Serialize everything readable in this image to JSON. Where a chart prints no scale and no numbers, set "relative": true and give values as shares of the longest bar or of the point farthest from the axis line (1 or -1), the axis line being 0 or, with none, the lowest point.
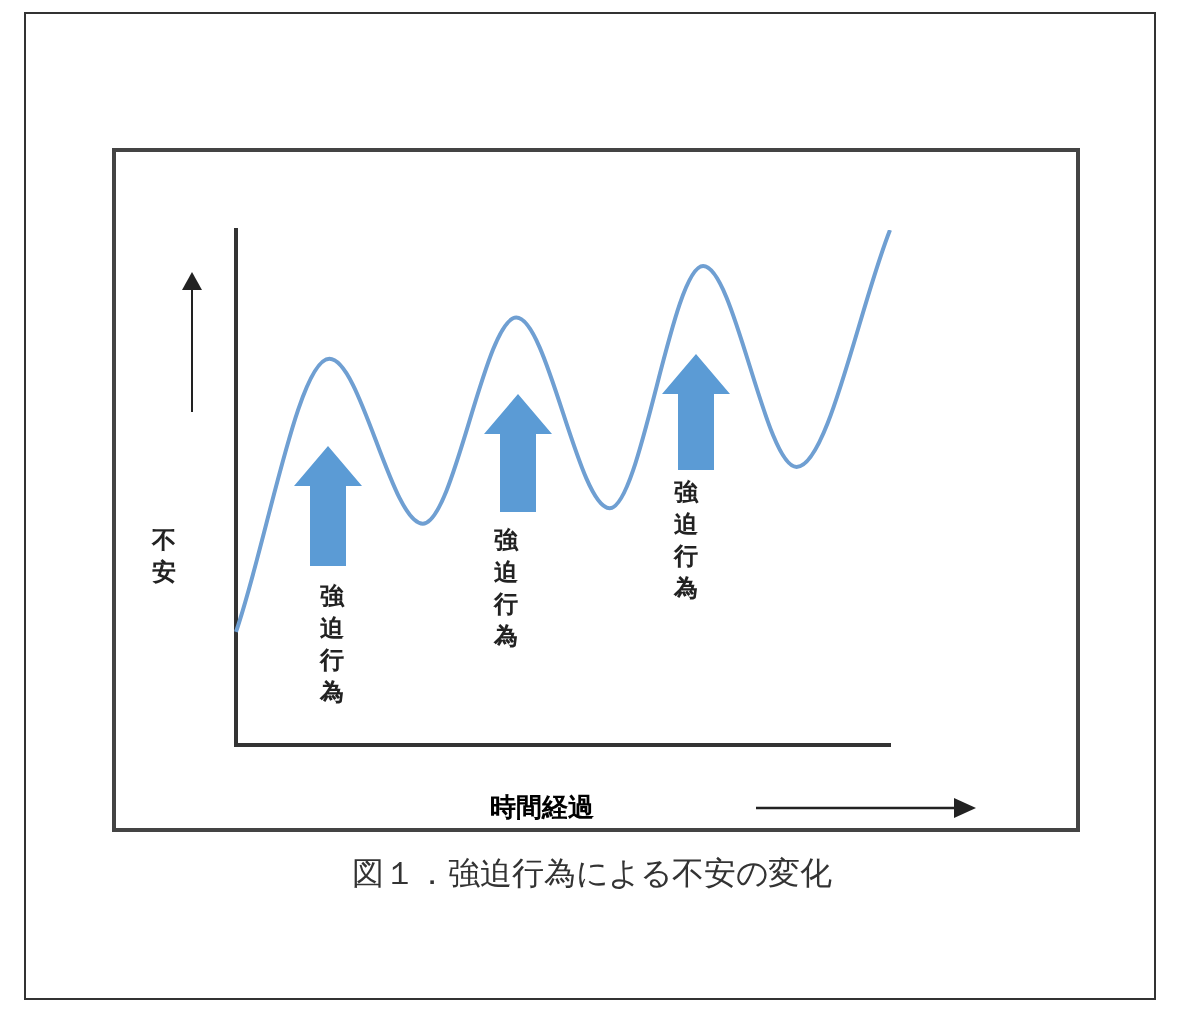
{
  "chart_data": {
    "type": "line",
    "title": "図１．強迫行為による不安の変化",
    "xlabel": "時間経過",
    "ylabel": "不安",
    "relative": true,
    "categories": [
      null,
      null,
      null,
      null,
      null,
      null,
      null,
      null
    ],
    "series": [
      {
        "color": "#6f9fd2",
        "values": [
          0.22,
          0.75,
          0.43,
          0.83,
          0.46,
          0.93,
          0.54,
          1
        ]
      }
    ],
    "annotations": [
      "強迫行為",
      "強迫行為",
      "強迫行為"
    ],
    "marker": "none",
    "legend": false,
    "grid": false
  }
}
